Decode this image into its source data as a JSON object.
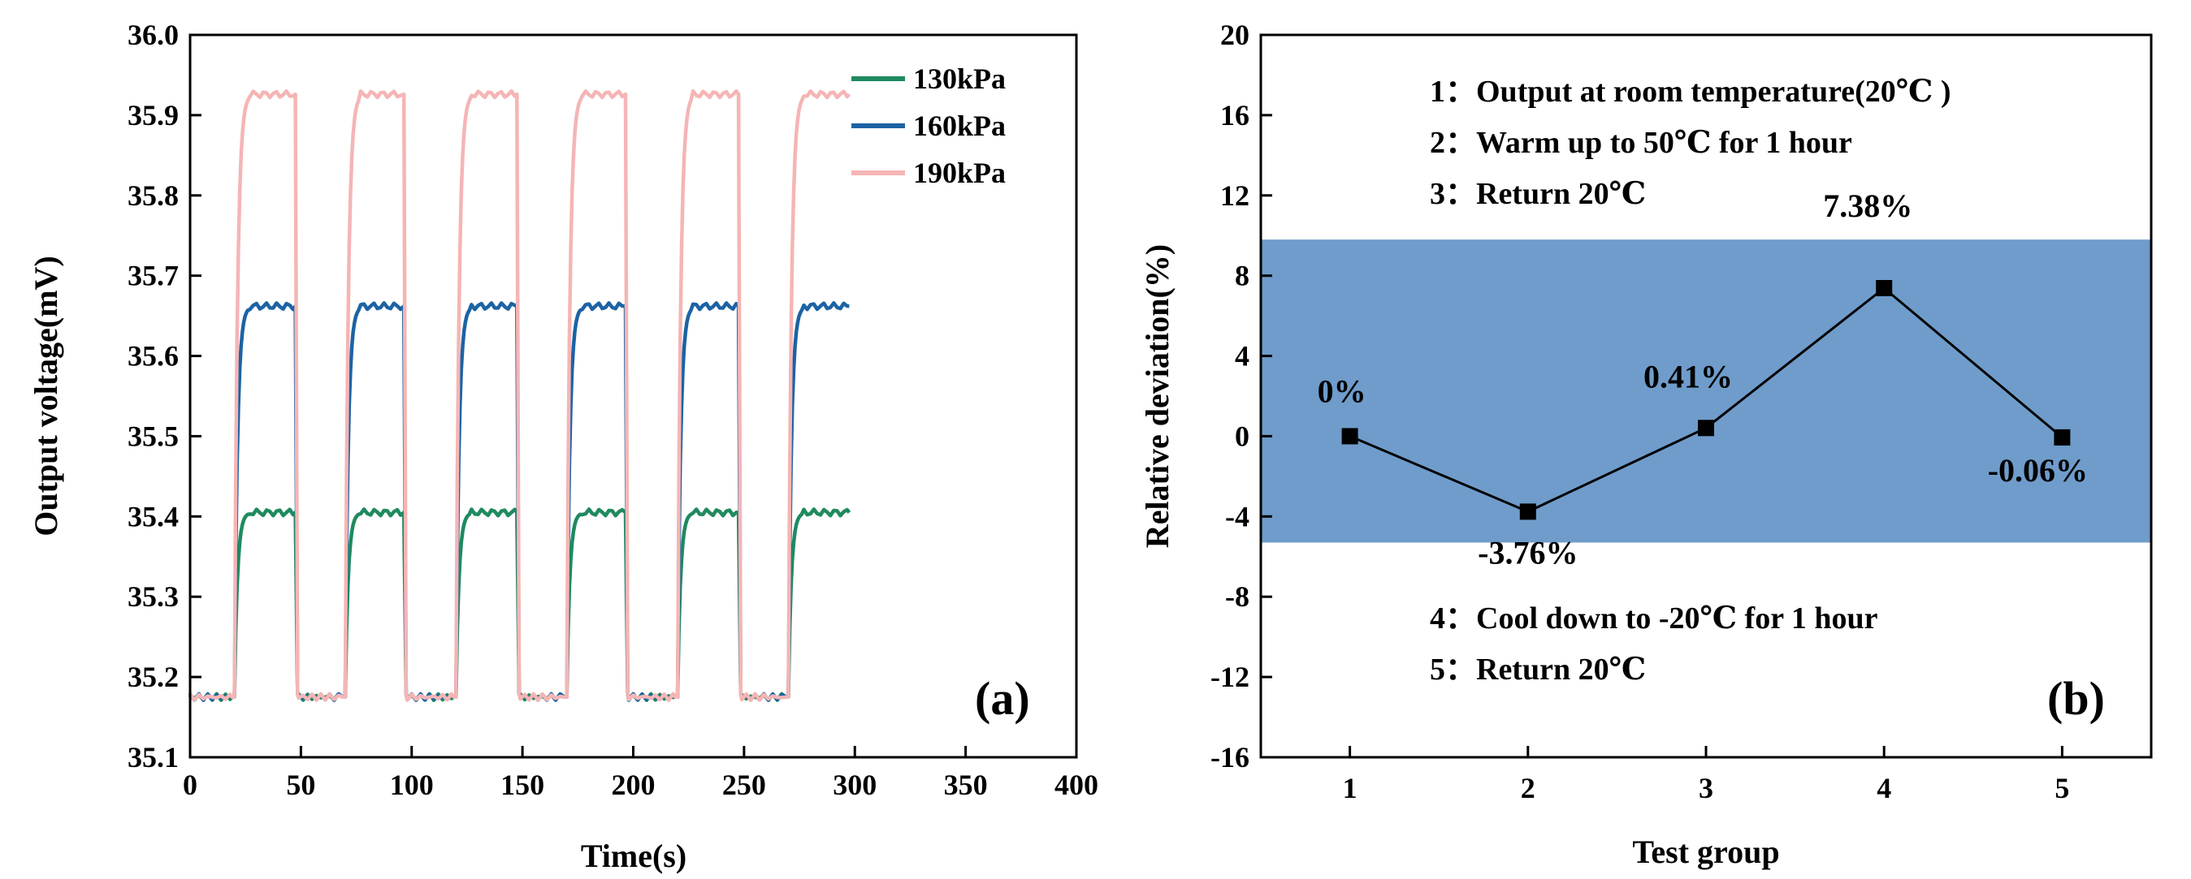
{
  "chart_data": [
    {
      "panel": "(a)",
      "type": "line",
      "title": "",
      "xlabel": "Time(s)",
      "ylabel": "Output voltage(mV)",
      "xlim": [
        0,
        400
      ],
      "ylim": [
        35.1,
        36.0
      ],
      "x_ticks": [
        "0",
        "50",
        "100",
        "150",
        "200",
        "250",
        "300",
        "350",
        "400"
      ],
      "y_ticks": [
        "35.1",
        "35.2",
        "35.3",
        "35.4",
        "35.5",
        "35.6",
        "35.7",
        "35.8",
        "35.9",
        "36.0"
      ],
      "grid": false,
      "legend_position": "top-right",
      "baseline_mV": 35.175,
      "cycle_rise_times_s": [
        20,
        70,
        120,
        170,
        220,
        270
      ],
      "cycle_fall_times_s": [
        48,
        97,
        148,
        197,
        248
      ],
      "end_time_s": 298,
      "series": [
        {
          "name": "130kPa",
          "color": "#1f8a5f",
          "plateau_mV": 35.405
        },
        {
          "name": "160kPa",
          "color": "#1c63a5",
          "plateau_mV": 35.662
        },
        {
          "name": "190kPa",
          "color": "#f5b5b5",
          "plateau_mV": 35.926
        }
      ]
    },
    {
      "panel": "(b)",
      "type": "line",
      "title": "",
      "xlabel": "Test group",
      "ylabel": "Relative deviation(%)",
      "xlim": [
        0.5,
        5.5
      ],
      "ylim": [
        -16,
        20
      ],
      "x_ticks": [
        "1",
        "2",
        "3",
        "4",
        "5"
      ],
      "y_ticks": [
        "-16",
        "-12",
        "-8",
        "-4",
        "0",
        "4",
        "8",
        "12",
        "16",
        "20"
      ],
      "grid": false,
      "band": {
        "ymin": -5.3,
        "ymax": 9.8,
        "color": "#6f9ccb"
      },
      "series": [
        {
          "name": "Relative deviation",
          "color": "#000000",
          "x": [
            1,
            2,
            3,
            4,
            5
          ],
          "values": [
            0,
            -3.76,
            0.41,
            7.38,
            -0.06
          ],
          "data_labels": [
            "0%",
            "-3.76%",
            "0.41%",
            "7.38%",
            "-0.06%"
          ]
        }
      ],
      "annotations_top": [
        "1：Output at room temperature(20℃ )",
        "2：Warm up to 50℃  for 1 hour",
        "3：Return 20℃"
      ],
      "annotations_bottom": [
        "4：Cool down to -20℃  for 1 hour",
        "5：Return 20℃"
      ]
    }
  ]
}
